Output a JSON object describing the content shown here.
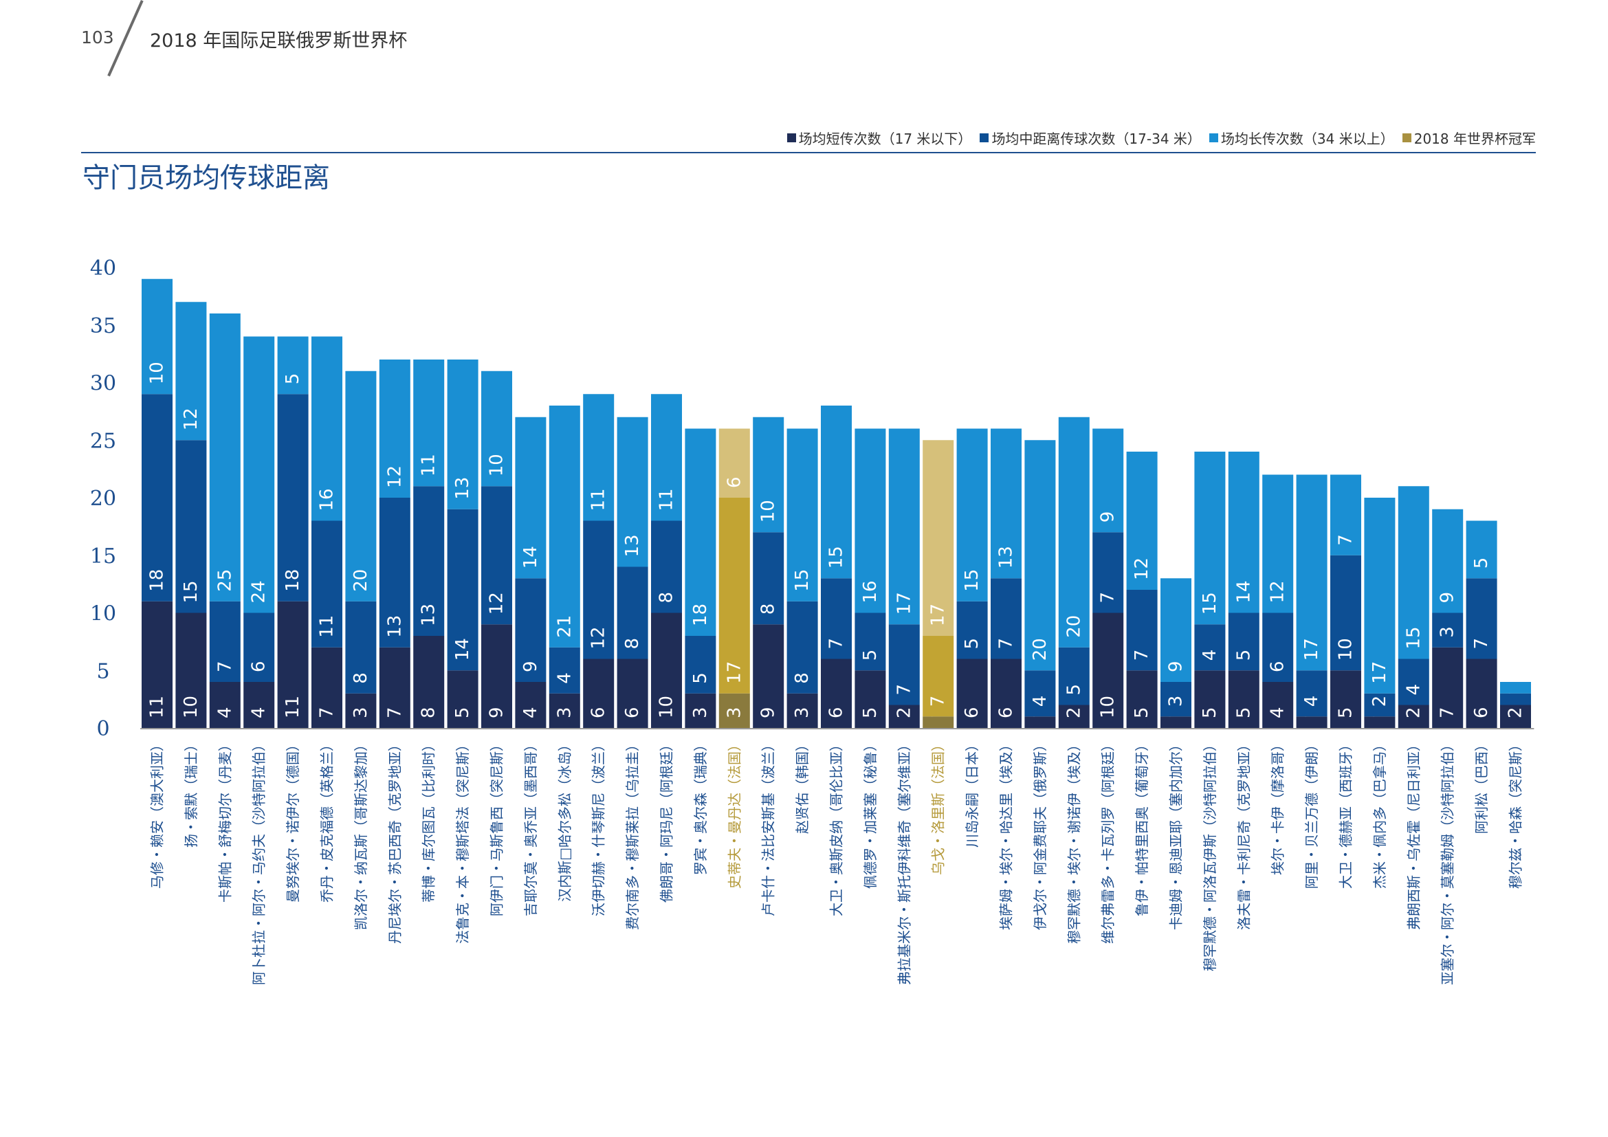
{
  "header": {
    "page_number": "103",
    "title": "2018 年国际足联俄罗斯世界杯"
  },
  "legend": {
    "items": [
      {
        "label": "场均短传次数（17 米以下）",
        "color": "#1f2d57"
      },
      {
        "label": "场均中距离传球次数（17-34 米）",
        "color": "#0d4f94"
      },
      {
        "label": "场均长传次数（34 米以上）",
        "color": "#1a8fd3"
      },
      {
        "label": "2018 年世界杯冠军",
        "color": "#a99140"
      }
    ]
  },
  "colors": {
    "short": "#1f2d57",
    "medium": "#0d4f94",
    "long": "#1a8fd3",
    "champ_short": "#8a7a3d",
    "champ_medium": "#c2a433",
    "champ_long": "#d6c07a",
    "axis_text": "#1e4f8f",
    "player_text": "#1e4f8f",
    "champ_text": "#b59a3b"
  },
  "chart_data": {
    "type": "bar",
    "stacked": true,
    "title": "守门员场均传球距离",
    "ylim": [
      0,
      40
    ],
    "yticks": [
      "0",
      "5",
      "10",
      "15",
      "20",
      "25",
      "30",
      "35",
      "40"
    ],
    "series_names": [
      "场均短传次数（17 米以下）",
      "场均中距离传球次数（17-34 米）",
      "场均长传次数（34 米以上）"
    ],
    "players": [
      {
        "name": "马修・赖安（澳大利亚）",
        "short": 11,
        "medium": 18,
        "long": 10,
        "champion": false
      },
      {
        "name": "扬・索默（瑞士）",
        "short": 10,
        "medium": 15,
        "long": 12,
        "champion": false
      },
      {
        "name": "卡斯帕・舒梅切尔（丹麦）",
        "short": 4,
        "medium": 7,
        "long": 25,
        "champion": false
      },
      {
        "name": "阿卜杜拉・阿尔・马约夫（沙特阿拉伯）",
        "short": 4,
        "medium": 6,
        "long": 24,
        "champion": false
      },
      {
        "name": "曼努埃尔・诺伊尔（德国）",
        "short": 11,
        "medium": 18,
        "long": 5,
        "champion": false
      },
      {
        "name": "乔丹・皮克福德（英格兰）",
        "short": 7,
        "medium": 11,
        "long": 16,
        "champion": false
      },
      {
        "name": "凯洛尔・纳瓦斯（哥斯达黎加）",
        "short": 3,
        "medium": 8,
        "long": 20,
        "champion": false
      },
      {
        "name": "丹尼埃尔・苏巴西奇（克罗地亚）",
        "short": 7,
        "medium": 13,
        "long": 12,
        "champion": false
      },
      {
        "name": "蒂博・库尔图瓦（比利时）",
        "short": 8,
        "medium": 13,
        "long": 11,
        "champion": false
      },
      {
        "name": "法鲁克・本・穆斯塔法（突尼斯）",
        "short": 5,
        "medium": 14,
        "long": 13,
        "champion": false
      },
      {
        "name": "阿伊门・马斯鲁西（突尼斯）",
        "short": 9,
        "medium": 12,
        "long": 10,
        "champion": false
      },
      {
        "name": "吉耶尔莫・奥乔亚（墨西哥）",
        "short": 4,
        "medium": 9,
        "long": 14,
        "champion": false
      },
      {
        "name": "汉内斯□哈尔多松（冰岛）",
        "short": 3,
        "medium": 4,
        "long": 21,
        "champion": false
      },
      {
        "name": "沃伊切赫・什琴斯尼（波兰）",
        "short": 6,
        "medium": 12,
        "long": 11,
        "champion": false
      },
      {
        "name": "费尔南多・穆斯莱拉（乌拉圭）",
        "short": 6,
        "medium": 8,
        "long": 13,
        "champion": false
      },
      {
        "name": "佛朗哥・阿玛尼（阿根廷）",
        "short": 10,
        "medium": 8,
        "long": 11,
        "champion": false
      },
      {
        "name": "罗宾・奥尔森（瑞典）",
        "short": 3,
        "medium": 5,
        "long": 18,
        "champion": false
      },
      {
        "name": "史蒂夫・曼丹达（法国）",
        "short": 3,
        "medium": 17,
        "long": 6,
        "champion": true
      },
      {
        "name": "卢卡什・法比安斯基（波兰）",
        "short": 9,
        "medium": 8,
        "long": 10,
        "champion": false
      },
      {
        "name": "赵贤佑（韩国）",
        "short": 3,
        "medium": 8,
        "long": 15,
        "champion": false
      },
      {
        "name": "大卫・奥斯皮纳（哥伦比亚）",
        "short": 6,
        "medium": 7,
        "long": 15,
        "champion": false
      },
      {
        "name": "佩德罗・加莱塞（秘鲁）",
        "short": 5,
        "medium": 5,
        "long": 16,
        "champion": false
      },
      {
        "name": "弗拉基米尔・斯托伊科维奇（塞尔维亚）",
        "short": 2,
        "medium": 7,
        "long": 17,
        "champion": false
      },
      {
        "name": "乌戈・洛里斯（法国）",
        "short": 1,
        "medium": 7,
        "long": 17,
        "champion": true
      },
      {
        "name": "川岛永嗣（日本）",
        "short": 6,
        "medium": 5,
        "long": 15,
        "champion": false
      },
      {
        "name": "埃萨姆・埃尔・哈达里（埃及）",
        "short": 6,
        "medium": 7,
        "long": 13,
        "champion": false
      },
      {
        "name": "伊戈尔・阿金费耶夫（俄罗斯）",
        "short": 1,
        "medium": 4,
        "long": 20,
        "champion": false
      },
      {
        "name": "穆罕默德・埃尔・谢诺伊（埃及）",
        "short": 2,
        "medium": 5,
        "long": 20,
        "champion": false
      },
      {
        "name": "维尔弗雷多・卡瓦列罗（阿根廷）",
        "short": 10,
        "medium": 7,
        "long": 9,
        "champion": false
      },
      {
        "name": "鲁伊・帕特里西奥（葡萄牙）",
        "short": 5,
        "medium": 7,
        "long": 12,
        "champion": false
      },
      {
        "name": "卡迪姆・恩迪亚耶（塞内加尔）",
        "short": 1,
        "medium": 3,
        "long": 9,
        "champion": false
      },
      {
        "name": "穆罕默德・阿洛瓦伊斯（沙特阿拉伯）",
        "short": 5,
        "medium": 4,
        "long": 15,
        "champion": false
      },
      {
        "name": "洛夫雷・卡利尼奇（克罗地亚）",
        "short": 5,
        "medium": 5,
        "long": 14,
        "champion": false
      },
      {
        "name": "埃尔・卡伊（摩洛哥）",
        "short": 4,
        "medium": 6,
        "long": 12,
        "champion": false
      },
      {
        "name": "阿里・贝兰万德（伊朗）",
        "short": 1,
        "medium": 4,
        "long": 17,
        "champion": false
      },
      {
        "name": "大卫・德赫亚（西班牙）",
        "short": 5,
        "medium": 10,
        "long": 7,
        "champion": false
      },
      {
        "name": "杰米・佩内多（巴拿马）",
        "short": 1,
        "medium": 2,
        "long": 17,
        "champion": false
      },
      {
        "name": "弗朗西斯・乌佐霍（尼日利亚）",
        "short": 2,
        "medium": 4,
        "long": 15,
        "champion": false
      },
      {
        "name": "亚塞尔・阿尔・莫塞勒姆（沙特阿拉伯）",
        "short": 7,
        "medium": 3,
        "long": 9,
        "champion": false
      },
      {
        "name": "阿利松（巴西）",
        "short": 6,
        "medium": 7,
        "long": 5,
        "champion": false
      },
      {
        "name": "穆尔兹・哈森（突尼斯）",
        "short": 2,
        "medium": 1,
        "long": 1,
        "champion": false
      }
    ]
  }
}
